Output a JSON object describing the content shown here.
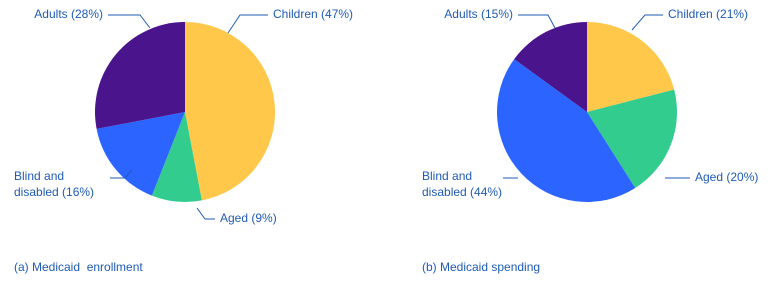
{
  "chart_data": [
    {
      "type": "pie",
      "title": "(a) Medicaid  enrollment",
      "values": [
        47,
        9,
        16,
        28
      ],
      "value_labels": [
        [
          "Children (47%)"
        ],
        [
          "Aged (9%)"
        ],
        [
          "Blind and",
          "disabled (16%)"
        ],
        [
          "Adults (28%)"
        ]
      ],
      "colors": [
        "#ffc84a",
        "#33cc8f",
        "#2c64ff",
        "#4a148c"
      ]
    },
    {
      "type": "pie",
      "title": "(b) Medicaid spending",
      "values": [
        21,
        20,
        44,
        15
      ],
      "value_labels": [
        [
          "Children (21%)"
        ],
        [
          "Aged (20%)"
        ],
        [
          "Blind and",
          "disabled (44%)"
        ],
        [
          "Adults (15%)"
        ]
      ],
      "colors": [
        "#ffc84a",
        "#33cc8f",
        "#2c64ff",
        "#4a148c"
      ]
    }
  ]
}
